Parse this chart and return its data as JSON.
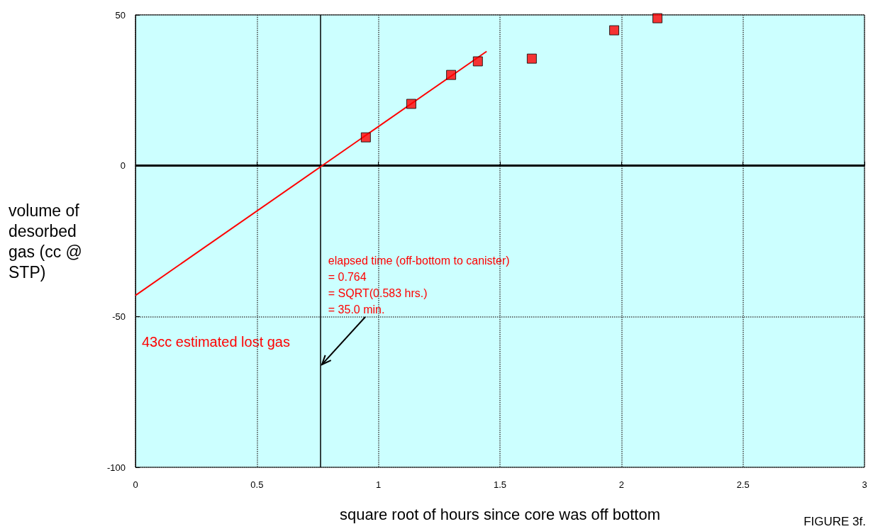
{
  "chart_data": {
    "type": "scatter",
    "xlabel": "square root of hours since core was off bottom",
    "ylabel": "volume of desorbed gas (cc @ STP)",
    "x": [
      0.948,
      1.135,
      1.299,
      1.409,
      1.631,
      1.97,
      2.148
    ],
    "series": [
      {
        "color": "#ff0000",
        "marker": "square",
        "values": [
          9.4,
          20.5,
          30.1,
          34.6,
          35.5,
          44.9,
          48.9
        ]
      },
      {
        "type": "line",
        "color": "#ff0000",
        "marker": "none",
        "x": [
          0,
          1.445
        ],
        "values": [
          -43,
          37.9
        ]
      }
    ],
    "xlim": [
      0,
      3
    ],
    "xticks": [
      0,
      0.5,
      1,
      1.5,
      2,
      2.5,
      3
    ],
    "ylim": [
      -100,
      50
    ],
    "yticks": [
      -100,
      -50,
      0,
      50
    ],
    "grid": true,
    "ref_lines": [
      {
        "axis": "x",
        "value": 0.764,
        "color": "#000000"
      },
      {
        "axis": "y",
        "value": 0,
        "color": "#000000"
      }
    ],
    "annotations": [
      {
        "text": "elapsed time (off-bottom to canister)\n= 0.764\n= SQRT(0.583 hrs.)\n= 35.0 min.",
        "x": 0.764,
        "y": -66
      },
      "43cc estimated lost gas",
      "FIGURE 3f."
    ]
  }
}
